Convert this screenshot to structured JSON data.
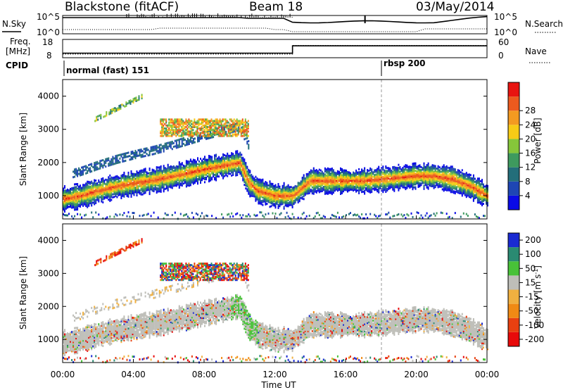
{
  "header": {
    "station": "Blackstone (fitACF)",
    "beam": "Beam 18",
    "date": "03/May/2014"
  },
  "side_labels": {
    "nsky": "N.Sky",
    "nsearch": "N.Search",
    "freq": "Freq.",
    "freq_unit": "[MHz]",
    "nave": "Nave",
    "cpid": "CPID"
  },
  "noise_panel": {
    "left_ticks": [
      "10^5",
      "10^0"
    ],
    "right_ticks": [
      "10^5",
      "10^0"
    ]
  },
  "freq_panel": {
    "left_ticks": [
      "18",
      "8"
    ],
    "right_ticks": [
      "60",
      "0"
    ]
  },
  "cpid_panel": {
    "segments": [
      {
        "label": "normal (fast) 151",
        "start_hour": 0
      },
      {
        "label": "rbsp 200",
        "start_hour": 18
      }
    ]
  },
  "power_panel": {
    "ylabel": "Slant Range [km]",
    "yticks": [
      "1000",
      "2000",
      "3000",
      "4000"
    ],
    "colorbar_label": "Power [dB]",
    "colorbar_ticks": [
      "4",
      "8",
      "12",
      "16",
      "20",
      "24",
      "28"
    ],
    "colorbar_colors": [
      "#0a0ae6",
      "#1e46b4",
      "#236e7a",
      "#3e9a5e",
      "#86c63a",
      "#f7cb16",
      "#f39a21",
      "#ec5a1e",
      "#e81410"
    ]
  },
  "velocity_panel": {
    "ylabel": "Slant Range [km]",
    "yticks": [
      "1000",
      "2000",
      "3000",
      "4000"
    ],
    "colorbar_label": "Velocity [m s",
    "colorbar_label_sup": "-1",
    "colorbar_label_end": "]",
    "colorbar_ticks": [
      "200",
      "100",
      "50",
      "15",
      "-15",
      "-50",
      "-100",
      "-200"
    ],
    "colorbar_colors": [
      "#1a2ad2",
      "#2a8a72",
      "#48c238",
      "#bebeb8",
      "#f0b040",
      "#f08a14",
      "#e84010",
      "#e80a0a"
    ]
  },
  "xaxis": {
    "label": "Time UT",
    "ticks": [
      "00:00",
      "04:00",
      "08:00",
      "12:00",
      "16:00",
      "20:00",
      "00:00"
    ]
  },
  "chart_data": {
    "type": "heatmap",
    "title": "Blackstone (fitACF) Beam 18 03/May/2014",
    "xlabel": "Time UT",
    "ylabel": "Slant Range [km]",
    "xlim_hours": [
      0,
      24
    ],
    "ylim_km": [
      300,
      4500
    ],
    "cpid_change_hour": 18,
    "frequency_mhz": [
      {
        "start_hour": 0,
        "end_hour": 13,
        "value": 10.5
      },
      {
        "start_hour": 13,
        "end_hour": 24,
        "value": 14.5
      }
    ],
    "nave": [
      {
        "start_hour": 0,
        "end_hour": 13,
        "value": 12
      },
      {
        "start_hour": 13,
        "end_hour": 24,
        "value": 40
      }
    ],
    "power_colorscale_db": [
      0,
      30
    ],
    "velocity_colorscale_ms": [
      -200,
      200
    ],
    "main_echo_band_km": {
      "hours": [
        0,
        1,
        2,
        3,
        4,
        5,
        6,
        7,
        8,
        9,
        10,
        10.5,
        11,
        12,
        13,
        14,
        15,
        16,
        17,
        18,
        19,
        20,
        21,
        22,
        23,
        24
      ],
      "range": [
        900,
        1000,
        1150,
        1280,
        1380,
        1460,
        1560,
        1680,
        1800,
        1900,
        2000,
        1400,
        1150,
        1000,
        1000,
        1450,
        1450,
        1450,
        1450,
        1500,
        1550,
        1600,
        1600,
        1500,
        1300,
        1000
      ]
    },
    "upper_patch_km": {
      "start_hour": 5.5,
      "end_hour": 10.5,
      "range_min": 2800,
      "range_max": 3300
    }
  }
}
